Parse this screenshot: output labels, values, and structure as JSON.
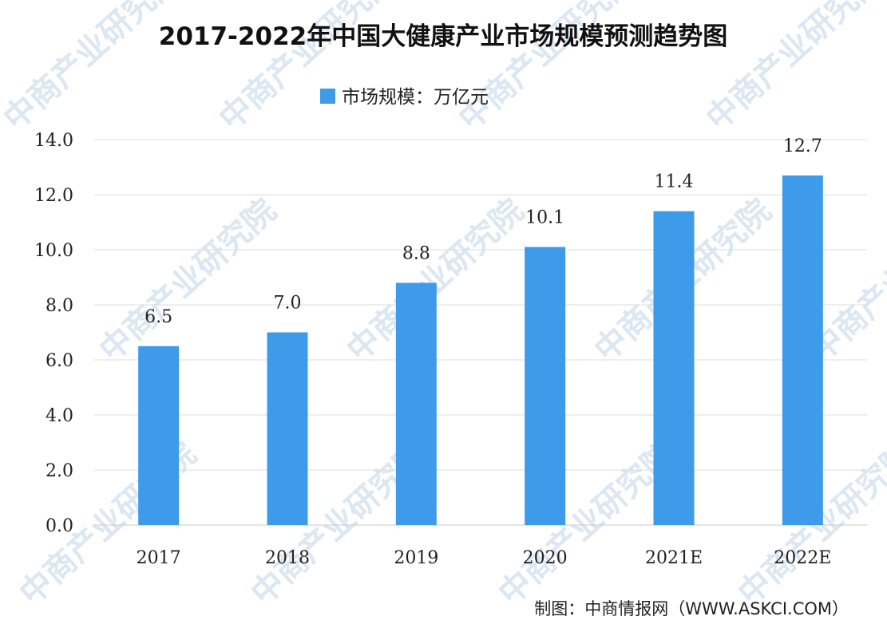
{
  "chart_data": {
    "type": "bar",
    "title": "2017-2022年中国大健康产业市场规模预测趋势图",
    "legend": {
      "position": "top-center"
    },
    "series": [
      {
        "name": "市场规模：万亿元",
        "color": "#3d9be9",
        "values": [
          6.5,
          7.0,
          8.8,
          10.1,
          11.4,
          12.7
        ]
      }
    ],
    "categories": [
      "2017",
      "2018",
      "2019",
      "2020",
      "2021E",
      "2022E"
    ],
    "data_labels": [
      "6.5",
      "7.0",
      "8.8",
      "10.1",
      "11.4",
      "12.7"
    ],
    "yticks": [
      "0.0",
      "2.0",
      "4.0",
      "6.0",
      "8.0",
      "10.0",
      "12.0",
      "14.0"
    ],
    "ylim": [
      0,
      14
    ],
    "grid": true,
    "xlabel": "",
    "ylabel": ""
  },
  "source": "制图：中商情报网（WWW.ASKCI.COM）",
  "watermark": {
    "text": "中商产业研究院",
    "color": "#dbe7f3"
  }
}
